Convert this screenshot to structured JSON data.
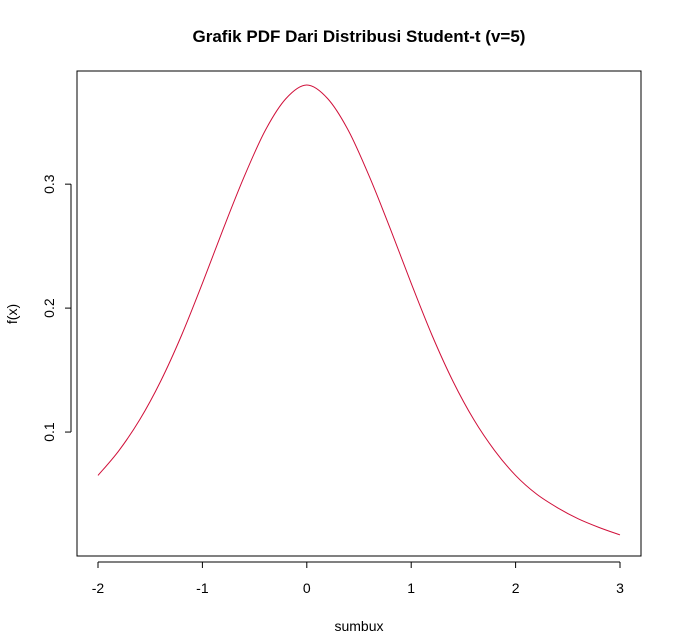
{
  "chart_data": {
    "type": "line",
    "title": "Grafik PDF Dari Distribusi Student-t (v=5)",
    "xlabel": "sumbux",
    "ylabel": "f(x)",
    "xlim": [
      -2,
      3
    ],
    "ylim": [
      0.0,
      0.38
    ],
    "x_ticks": [
      -2,
      -1,
      0,
      1,
      2,
      3
    ],
    "x_tick_labels": [
      "-2",
      "-1",
      "0",
      "1",
      "2",
      "3"
    ],
    "y_ticks": [
      0.1,
      0.2,
      0.3
    ],
    "y_tick_labels": [
      "0.1",
      "0.2",
      "0.3"
    ],
    "grid": false,
    "legend": "none",
    "line_color": "#d0103a",
    "series": [
      {
        "x": [
          -2.0,
          -1.8,
          -1.6,
          -1.4,
          -1.2,
          -1.0,
          -0.8,
          -0.6,
          -0.4,
          -0.2,
          0.0,
          0.2,
          0.4,
          0.6,
          0.8,
          1.0,
          1.2,
          1.4,
          1.6,
          1.8,
          2.0,
          2.2,
          2.4,
          2.6,
          2.8,
          3.0
        ],
        "values": [
          0.065,
          0.085,
          0.11,
          0.141,
          0.178,
          0.22,
          0.264,
          0.306,
          0.343,
          0.369,
          0.38,
          0.369,
          0.343,
          0.306,
          0.264,
          0.22,
          0.178,
          0.141,
          0.11,
          0.085,
          0.065,
          0.05,
          0.039,
          0.03,
          0.023,
          0.017
        ]
      }
    ]
  }
}
